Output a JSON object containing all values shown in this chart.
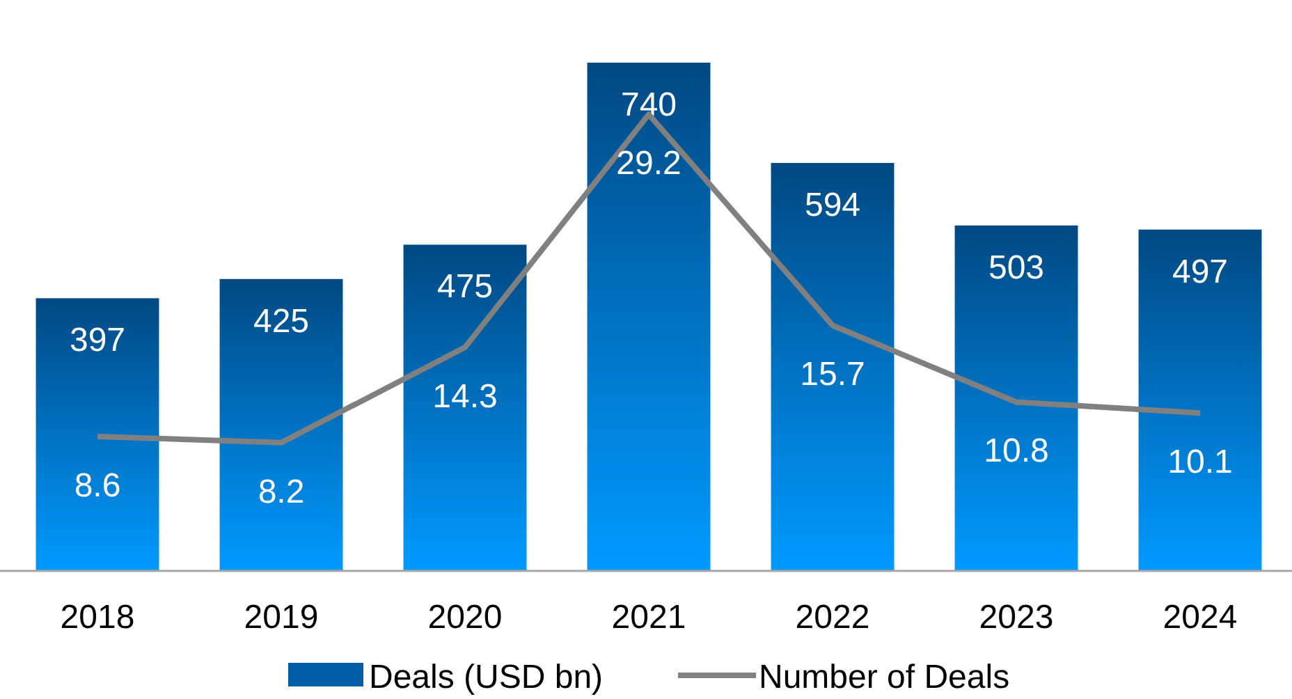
{
  "chart_data": {
    "type": "bar",
    "categories": [
      "2018",
      "2019",
      "2020",
      "2021",
      "2022",
      "2023",
      "2024"
    ],
    "series": [
      {
        "name": "Deals (USD bn)",
        "color": "#0070c8",
        "values": [
          397,
          425,
          475,
          740,
          594,
          503,
          497
        ]
      },
      {
        "name": "Number of Deals",
        "type": "line",
        "axis": "y2",
        "color": "#808080",
        "values": [
          8.6,
          8.2,
          14.3,
          29.2,
          15.7,
          10.8,
          10.1
        ]
      }
    ],
    "tick_labels": "x",
    "data_labels": true,
    "legend": "bottom",
    "marker": "none"
  }
}
